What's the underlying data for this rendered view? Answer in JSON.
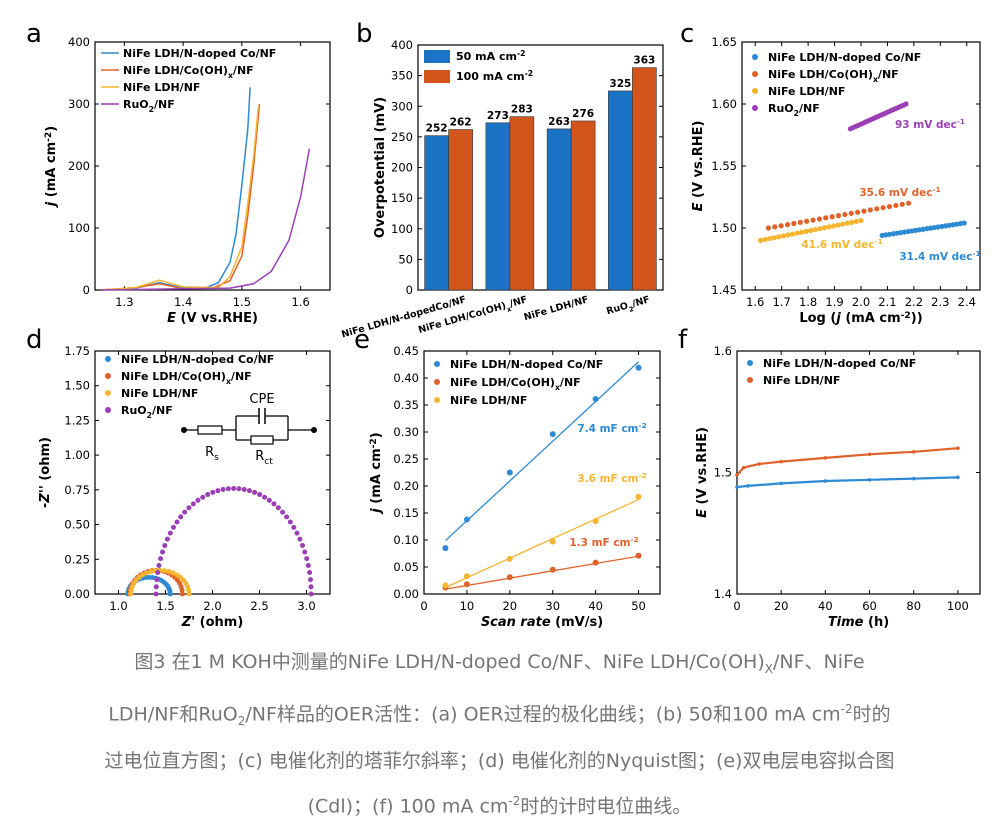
{
  "colors": {
    "blue": "#2d8ad4",
    "orange": "#e0622a",
    "yellow": "#f5b531",
    "purple": "#9b3fb6",
    "bar_blue": "#1a73c4",
    "bar_orange": "#d2561c"
  },
  "chart_data": [
    {
      "panel": "a",
      "type": "line",
      "xlabel": "E (V vs.RHE)",
      "ylabel": "j (mA cm-2)",
      "xlim": [
        1.25,
        1.65
      ],
      "ylim": [
        0,
        400
      ],
      "xticks": [
        "1.3",
        "1.4",
        "1.5",
        "1.6"
      ],
      "yticks": [
        "0",
        "100",
        "200",
        "300",
        "400"
      ],
      "legend": "top-left",
      "series": [
        {
          "name": "NiFe LDH/N-doped Co/NF",
          "color": "blue",
          "points": [
            [
              1.26,
              0
            ],
            [
              1.32,
              3
            ],
            [
              1.36,
              12
            ],
            [
              1.4,
              3
            ],
            [
              1.44,
              4
            ],
            [
              1.46,
              12
            ],
            [
              1.48,
              45
            ],
            [
              1.49,
              90
            ],
            [
              1.5,
              170
            ],
            [
              1.51,
              260
            ],
            [
              1.514,
              327
            ]
          ]
        },
        {
          "name": "NiFe LDH/Co(OH)x/NF",
          "color": "orange",
          "points": [
            [
              1.26,
              0
            ],
            [
              1.32,
              4
            ],
            [
              1.36,
              10
            ],
            [
              1.4,
              2
            ],
            [
              1.45,
              3
            ],
            [
              1.48,
              15
            ],
            [
              1.5,
              55
            ],
            [
              1.51,
              120
            ],
            [
              1.52,
              200
            ],
            [
              1.53,
              300
            ]
          ]
        },
        {
          "name": "NiFe LDH/NF",
          "color": "yellow",
          "points": [
            [
              1.26,
              0
            ],
            [
              1.32,
              4
            ],
            [
              1.36,
              16
            ],
            [
              1.4,
              5
            ],
            [
              1.46,
              4
            ],
            [
              1.48,
              22
            ],
            [
              1.5,
              70
            ],
            [
              1.51,
              140
            ],
            [
              1.52,
              215
            ],
            [
              1.528,
              295
            ]
          ]
        },
        {
          "name": "RuO2/NF",
          "color": "purple",
          "points": [
            [
              1.26,
              0
            ],
            [
              1.4,
              2
            ],
            [
              1.48,
              3
            ],
            [
              1.52,
              10
            ],
            [
              1.55,
              30
            ],
            [
              1.58,
              80
            ],
            [
              1.6,
              150
            ],
            [
              1.615,
              228
            ]
          ]
        }
      ]
    },
    {
      "panel": "b",
      "type": "bar",
      "ylabel": "Overpotential (mV)",
      "ylim": [
        0,
        400
      ],
      "yticks": [
        "0",
        "50",
        "100",
        "150",
        "200",
        "250",
        "300",
        "350",
        "400"
      ],
      "categories": [
        "NiFe LDH/N-dopedCo/NF",
        "NiFe LDH/Co(OH)x/NF",
        "NiFe LDH/NF",
        "RuO2/NF"
      ],
      "series": [
        {
          "name": "50 mA cm-2",
          "color": "bar_blue",
          "values": [
            252,
            273,
            263,
            325
          ]
        },
        {
          "name": "100 mA cm-2",
          "color": "bar_orange",
          "values": [
            262,
            283,
            276,
            363
          ]
        }
      ]
    },
    {
      "panel": "c",
      "type": "scatter",
      "xlabel": "Log (j (mA cm-2))",
      "ylabel": "E (V vs.RHE)",
      "xlim": [
        1.55,
        2.45
      ],
      "ylim": [
        1.45,
        1.65
      ],
      "xticks": [
        "1.6",
        "1.7",
        "1.8",
        "1.9",
        "2.0",
        "2.1",
        "2.2",
        "2.3",
        "2.4"
      ],
      "yticks": [
        "1.45",
        "1.50",
        "1.55",
        "1.60",
        "1.65"
      ],
      "legend": "top-left",
      "series": [
        {
          "name": "NiFe LDH/N-doped Co/NF",
          "color": "blue",
          "x_range": [
            2.08,
            2.39
          ],
          "y_range": [
            1.494,
            1.504
          ],
          "annotation": "31.4 mV dec-1"
        },
        {
          "name": "NiFe LDH/Co(OH)x/NF",
          "color": "orange",
          "x_range": [
            1.65,
            2.18
          ],
          "y_range": [
            1.5,
            1.52
          ],
          "annotation": "35.6 mV dec-1"
        },
        {
          "name": "NiFe LDH/NF",
          "color": "yellow",
          "x_range": [
            1.62,
            2.0
          ],
          "y_range": [
            1.49,
            1.506
          ],
          "annotation": "41.6 mV dec-1"
        },
        {
          "name": "RuO2/NF",
          "color": "purple",
          "x_range": [
            1.96,
            2.17
          ],
          "y_range": [
            1.58,
            1.6
          ],
          "annotation": "93 mV dec-1"
        }
      ]
    },
    {
      "panel": "d",
      "type": "scatter",
      "xlabel": "Z' (ohm)",
      "ylabel": "-Z'' (ohm)",
      "xlim": [
        0.75,
        3.25
      ],
      "ylim": [
        0,
        1.75
      ],
      "xticks": [
        "1.0",
        "1.5",
        "2.0",
        "2.5",
        "3.0"
      ],
      "yticks": [
        "0.00",
        "0.25",
        "0.50",
        "0.75",
        "1.00",
        "1.25",
        "1.50",
        "1.75"
      ],
      "legend": "top-left",
      "series": [
        {
          "name": "NiFe LDH/N-doped Co/NF",
          "color": "blue",
          "semicircle": {
            "x_start": 1.1,
            "x_end": 1.55,
            "peak": 0.12
          }
        },
        {
          "name": "NiFe LDH/Co(OH)x/NF",
          "color": "orange",
          "semicircle": {
            "x_start": 1.12,
            "x_end": 1.68,
            "peak": 0.17
          }
        },
        {
          "name": "NiFe LDH/NF",
          "color": "yellow",
          "semicircle": {
            "x_start": 1.13,
            "x_end": 1.75,
            "peak": 0.17
          }
        },
        {
          "name": "RuO2/NF",
          "color": "purple",
          "semicircle": {
            "x_start": 1.4,
            "x_end": 3.05,
            "peak": 0.76
          }
        }
      ],
      "circuit": {
        "label_cpe": "CPE",
        "label_rs": "Rs",
        "label_rct": "Rct"
      }
    },
    {
      "panel": "e",
      "type": "scatter",
      "xlabel": "Scan rate (mV/s)",
      "ylabel": "j (mA cm-2)",
      "xlim": [
        0,
        55
      ],
      "ylim": [
        0,
        0.45
      ],
      "xticks": [
        "0",
        "10",
        "20",
        "30",
        "40",
        "50"
      ],
      "yticks": [
        "0.00",
        "0.05",
        "0.10",
        "0.15",
        "0.20",
        "0.25",
        "0.30",
        "0.35",
        "0.40",
        "0.45"
      ],
      "legend": "top-left",
      "x": [
        5,
        10,
        20,
        30,
        40,
        50
      ],
      "series": [
        {
          "name": "NiFe LDH/N-doped Co/NF",
          "color": "blue",
          "values": [
            0.085,
            0.138,
            0.225,
            0.296,
            0.361,
            0.419
          ],
          "fit": [
            0.099,
            0.43
          ],
          "annotation": "7.4 mF cm-2"
        },
        {
          "name": "NiFe LDH/Co(OH)x/NF",
          "color": "orange",
          "values": [
            0.012,
            0.018,
            0.031,
            0.045,
            0.058,
            0.071
          ],
          "fit": [
            0.009,
            0.07
          ],
          "annotation": "1.3 mF cm-2"
        },
        {
          "name": "NiFe LDH/NF",
          "color": "yellow",
          "values": [
            0.016,
            0.033,
            0.065,
            0.097,
            0.135,
            0.18
          ],
          "fit": [
            0.012,
            0.175
          ],
          "annotation": "3.6 mF cm-2"
        }
      ]
    },
    {
      "panel": "f",
      "type": "line",
      "xlabel": "Time (h)",
      "ylabel": "E (V vs.RHE)",
      "xlim": [
        0,
        110
      ],
      "ylim": [
        1.4,
        1.6
      ],
      "xticks": [
        "0",
        "20",
        "40",
        "60",
        "80",
        "100"
      ],
      "yticks": [
        "1.4",
        "1.5",
        "1.6"
      ],
      "legend": "top-left",
      "series": [
        {
          "name": "NiFe LDH/N-doped Co/NF",
          "color": "blue",
          "points": [
            [
              0,
              1.488
            ],
            [
              5,
              1.489
            ],
            [
              20,
              1.491
            ],
            [
              40,
              1.493
            ],
            [
              60,
              1.494
            ],
            [
              80,
              1.495
            ],
            [
              100,
              1.496
            ]
          ]
        },
        {
          "name": "NiFe LDH/NF",
          "color": "orange",
          "points": [
            [
              0,
              1.498
            ],
            [
              3,
              1.504
            ],
            [
              10,
              1.507
            ],
            [
              20,
              1.509
            ],
            [
              40,
              1.512
            ],
            [
              60,
              1.515
            ],
            [
              80,
              1.517
            ],
            [
              100,
              1.52
            ]
          ]
        }
      ]
    }
  ],
  "caption": {
    "line1": "图3 在1 M KOH中测量的NiFe LDH/N-doped Co/NF、NiFe LDH/Co(OH)X/NF、NiFe",
    "line2": "LDH/NF和RuO2/NF样品的OER活性：(a) OER过程的极化曲线；(b) 50和100 mA cm-2时的",
    "line3": "过电位直方图；(c) 电催化剂的塔菲尔斜率；(d) 电催化剂的Nyquist图；(e)双电层电容拟合图",
    "line4": "(Cdl)；(f) 100 mA cm-2时的计时电位曲线。"
  }
}
